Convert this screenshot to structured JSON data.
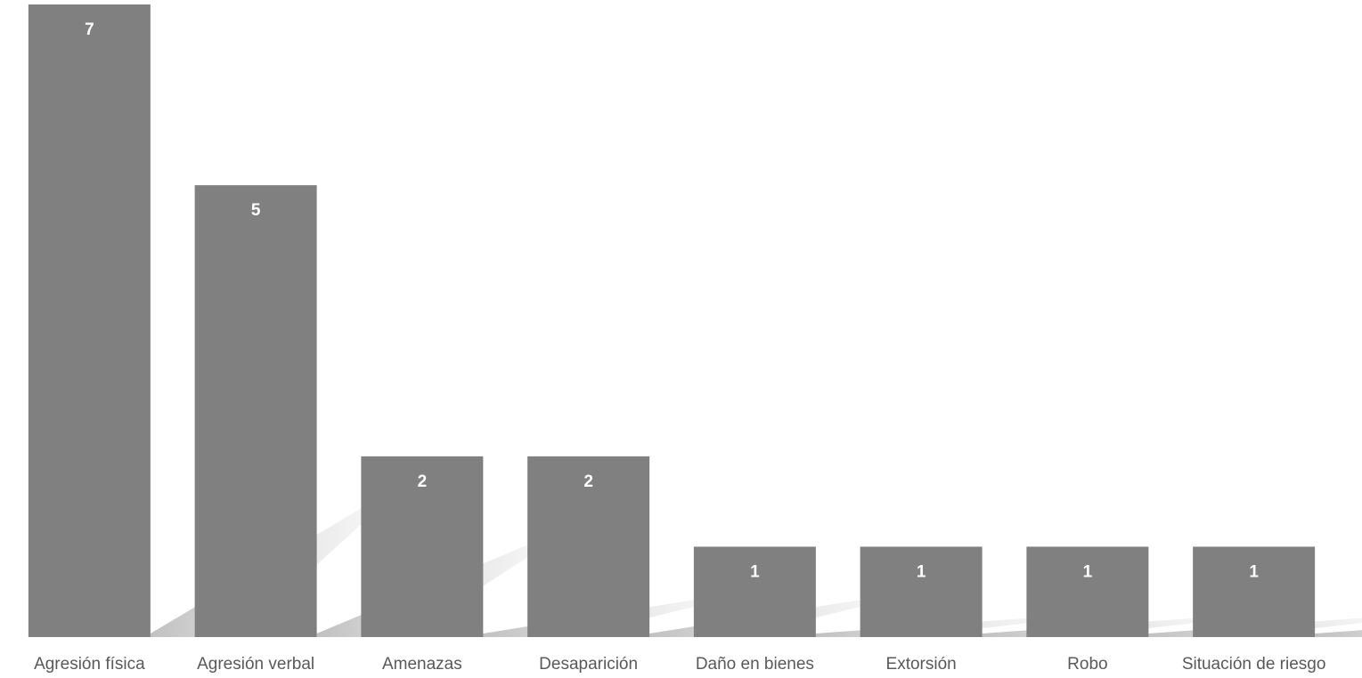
{
  "chart_data": {
    "type": "bar",
    "categories": [
      "Agresión física",
      "Agresión verbal",
      "Amenazas",
      "Desaparición",
      "Daño en bienes",
      "Extorsión",
      "Robo",
      "Situación de riesgo"
    ],
    "values": [
      7,
      5,
      2,
      2,
      1,
      1,
      1,
      1
    ],
    "title": "",
    "xlabel": "",
    "ylabel": "",
    "ylim": [
      0,
      7
    ],
    "grid": false,
    "legend": "none",
    "bar_color": "#808080",
    "shadow_color": "#c8c8c8",
    "label_color": "#ffffff",
    "category_label_color": "#595959"
  }
}
